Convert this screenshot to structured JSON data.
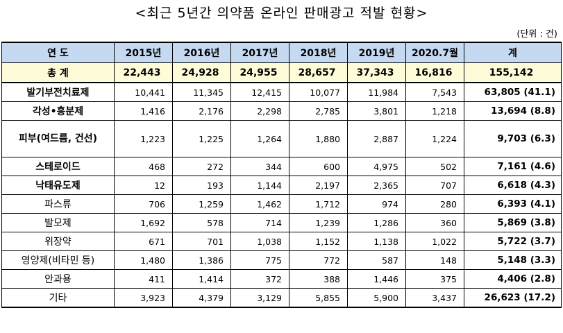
{
  "title": "<최근 5년간 의약품 온라인 판매광고 적발 현황>",
  "unit": "(단위 : 건)",
  "table": {
    "headers": [
      "연 도",
      "2015년",
      "2016년",
      "2017년",
      "2018년",
      "2019년",
      "2020.7월",
      "계"
    ],
    "total_row": {
      "label": "총 계",
      "values": [
        "22,443",
        "24,928",
        "24,955",
        "28,657",
        "37,343",
        "16,816",
        "155,142"
      ]
    },
    "rows": [
      {
        "label": "발기부전치료제",
        "bold": true,
        "values": [
          "10,441",
          "11,345",
          "12,415",
          "10,077",
          "11,984",
          "7,543"
        ],
        "sum": "63,805 (41.1)"
      },
      {
        "label": "각성•흥분제",
        "bold": true,
        "values": [
          "1,416",
          "2,176",
          "2,298",
          "2,785",
          "3,801",
          "1,218"
        ],
        "sum": "13,694 (8.8)"
      },
      {
        "label": "피부(여드름, 건선)",
        "bold": true,
        "tall": true,
        "values": [
          "1,223",
          "1,225",
          "1,264",
          "1,880",
          "2,887",
          "1,224"
        ],
        "sum": "9,703 (6.3)"
      },
      {
        "label": "스테로이드",
        "bold": true,
        "values": [
          "468",
          "272",
          "344",
          "600",
          "4,975",
          "502"
        ],
        "sum": "7,161 (4.6)"
      },
      {
        "label": "낙태유도제",
        "bold": true,
        "values": [
          "12",
          "193",
          "1,144",
          "2,197",
          "2,365",
          "707"
        ],
        "sum": "6,618 (4.3)"
      },
      {
        "label": "파스류",
        "bold": false,
        "values": [
          "706",
          "1,259",
          "1,462",
          "1,712",
          "974",
          "280"
        ],
        "sum": "6,393 (4.1)"
      },
      {
        "label": "발모제",
        "bold": false,
        "values": [
          "1,692",
          "578",
          "714",
          "1,239",
          "1,286",
          "360"
        ],
        "sum": "5,869 (3.8)"
      },
      {
        "label": "위장약",
        "bold": false,
        "values": [
          "671",
          "701",
          "1,038",
          "1,152",
          "1,138",
          "1,022"
        ],
        "sum": "5,722 (3.7)"
      },
      {
        "label": "영양제(비타민 등)",
        "bold": false,
        "values": [
          "1,480",
          "1,386",
          "775",
          "772",
          "587",
          "148"
        ],
        "sum": "5,148 (3.3)"
      },
      {
        "label": "안과용",
        "bold": false,
        "values": [
          "411",
          "1,414",
          "372",
          "388",
          "1,446",
          "375"
        ],
        "sum": "4,406 (2.8)"
      },
      {
        "label": "기타",
        "bold": false,
        "values": [
          "3,923",
          "4,379",
          "3,129",
          "5,855",
          "5,900",
          "3,437"
        ],
        "sum": "26,623 (17.2)"
      }
    ]
  },
  "colors": {
    "header_bg": "#c5d9f1",
    "total_bg": "#fefbd8"
  }
}
